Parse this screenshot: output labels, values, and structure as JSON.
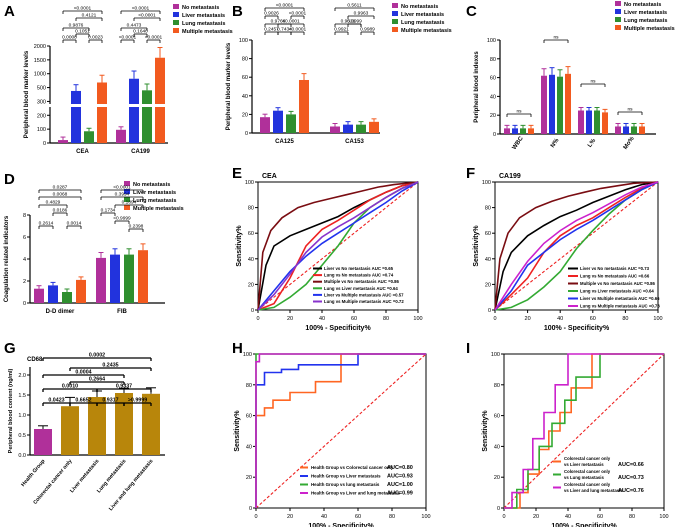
{
  "figure": {
    "panel_labels": [
      "A",
      "B",
      "C",
      "D",
      "E",
      "F",
      "G",
      "H",
      "I"
    ],
    "colors": {
      "no_met": "#b0309a",
      "liver_met": "#2233dd",
      "lung_met": "#2f8f2f",
      "multi_met": "#f25a1f",
      "gold": "#b8860b",
      "dark_red": "#7a0d12",
      "black": "#000000",
      "red": "#ee2222",
      "blue": "#2233ee",
      "green": "#33aa33",
      "purple": "#8833cc",
      "magenta": "#cc22cc",
      "orange": "#ff6622",
      "reference": "#ee2222"
    },
    "legend_4group": [
      "No metastasis",
      "Liver metastasis",
      "Lung metastasis",
      "Multiple metastasis"
    ]
  },
  "chart_data": [
    {
      "id": "A",
      "type": "bar",
      "ylabel": "Peripheral blood marker levels",
      "categories": [
        "CEA",
        "CA199"
      ],
      "series": [
        {
          "name": "No metastasis",
          "values": [
            20,
            90
          ]
        },
        {
          "name": "Liver metastasis",
          "values": [
            310,
            700
          ]
        },
        {
          "name": "Lung metastasis",
          "values": [
            80,
            330
          ]
        },
        {
          "name": "Multiple metastasis",
          "values": [
            580,
            1370
          ]
        }
      ],
      "yticks": [
        "0",
        "100",
        "200",
        "300",
        "500",
        "1000",
        "1500",
        "2000"
      ],
      "pvalues_cea": [
        "<0.0001",
        "0.4121",
        "0.9876",
        "0.1051",
        "0.0008",
        "0.0023"
      ],
      "pvalues_ca199": [
        "<0.0001",
        "<0.0001",
        "0.4473",
        "0.1640",
        "<0.0001",
        "<0.0001"
      ]
    },
    {
      "id": "B",
      "type": "bar",
      "ylabel": "Peripheral blood marker levels",
      "categories": [
        "CA125",
        "CA153"
      ],
      "series": [
        {
          "name": "No metastasis",
          "values": [
            17,
            7
          ]
        },
        {
          "name": "Liver metastasis",
          "values": [
            24,
            9
          ]
        },
        {
          "name": "Lung metastasis",
          "values": [
            20,
            9
          ]
        },
        {
          "name": "Multiple metastasis",
          "values": [
            57,
            12
          ]
        }
      ],
      "yticks": [
        "0",
        "20",
        "40",
        "60",
        "80",
        "100"
      ],
      "pvalues_ca125": [
        "<0.0001",
        "0.9026",
        "<0.0001",
        "0.9766",
        "<0.0001",
        "0.2457",
        "0.7434",
        "<0.0001"
      ],
      "pvalues_ca153": [
        "0.5611",
        "0.9963",
        "0.9521",
        "0.9999",
        "0.9921",
        "0.9989"
      ]
    },
    {
      "id": "C",
      "type": "bar",
      "ylabel": "Peripheral blood indexes",
      "categories": [
        "WBC",
        "N%",
        "L%",
        "Mo%"
      ],
      "series": [
        {
          "name": "No metastasis",
          "values": [
            6,
            62,
            25,
            8
          ]
        },
        {
          "name": "Liver metastasis",
          "values": [
            6,
            63,
            25,
            8
          ]
        },
        {
          "name": "Lung metastasis",
          "values": [
            6,
            61,
            25,
            8
          ]
        },
        {
          "name": "Multiple metastasis",
          "values": [
            6,
            64,
            23,
            8
          ]
        }
      ],
      "yticks": [
        "0",
        "20",
        "40",
        "60",
        "80",
        "100"
      ],
      "ns_label": "ns"
    },
    {
      "id": "D",
      "type": "bar",
      "ylabel": "Coagulation related indicators",
      "categories": [
        "D-D dimer",
        "FIB"
      ],
      "series": [
        {
          "name": "No metastasis",
          "values": [
            1.3,
            4.1
          ]
        },
        {
          "name": "Liver metastasis",
          "values": [
            1.6,
            4.4
          ]
        },
        {
          "name": "Lung metastasis",
          "values": [
            1.0,
            4.4
          ]
        },
        {
          "name": "Multiple metastasis",
          "values": [
            2.1,
            4.8
          ]
        }
      ],
      "yticks": [
        "0",
        "2",
        "4",
        "6",
        "8"
      ],
      "pvalues_dd": [
        "0.0287",
        "0.0068",
        "0.4829",
        "0.0186",
        "0.2614",
        "0.0014"
      ],
      "pvalues_fib": [
        "<0.0001",
        "0.3994",
        "0.1894",
        "0.1734",
        "<0.9999",
        "0.2398"
      ]
    },
    {
      "id": "E",
      "type": "line",
      "title": "CEA",
      "xlabel": "100% - Specificity%",
      "ylabel": "Sensitivity%",
      "xlim": [
        0,
        100
      ],
      "ylim": [
        0,
        100
      ],
      "ticks": [
        "0",
        "20",
        "40",
        "60",
        "80",
        "100"
      ],
      "series": [
        {
          "name": "Liver vs No metastasis  AUC =0.65",
          "color": "black",
          "x": [
            0,
            5,
            10,
            20,
            30,
            40,
            50,
            60,
            70,
            80,
            90,
            100
          ],
          "y": [
            0,
            35,
            50,
            58,
            63,
            68,
            73,
            80,
            86,
            92,
            97,
            100
          ]
        },
        {
          "name": "Lung vs No metastasis  AUC =0.74",
          "color": "red",
          "x": [
            0,
            10,
            20,
            30,
            40,
            50,
            60,
            70,
            80,
            90,
            100
          ],
          "y": [
            0,
            5,
            25,
            50,
            63,
            70,
            78,
            86,
            92,
            97,
            100
          ]
        },
        {
          "name": "Multiple  vs No metastasis  AUC =0.86",
          "color": "dark_red",
          "x": [
            0,
            3,
            8,
            15,
            25,
            35,
            45,
            55,
            65,
            75,
            85,
            100
          ],
          "y": [
            0,
            45,
            62,
            72,
            80,
            84,
            87,
            90,
            93,
            96,
            98,
            100
          ]
        },
        {
          "name": "Lung  vs Liver  metastasis  AUC =0.64",
          "color": "green",
          "x": [
            0,
            10,
            20,
            30,
            40,
            50,
            60,
            70,
            80,
            90,
            100
          ],
          "y": [
            0,
            2,
            10,
            20,
            35,
            50,
            68,
            80,
            88,
            95,
            100
          ]
        },
        {
          "name": "Liver  vs Multiple  metastasis  AUC =0.57",
          "color": "blue",
          "x": [
            0,
            10,
            20,
            30,
            40,
            50,
            60,
            70,
            80,
            90,
            100
          ],
          "y": [
            0,
            15,
            30,
            42,
            52,
            60,
            68,
            76,
            84,
            93,
            100
          ]
        },
        {
          "name": "Lung  vs Multiple metastasis  AUC =0.72",
          "color": "purple",
          "x": [
            0,
            10,
            20,
            30,
            40,
            50,
            60,
            70,
            80,
            90,
            100
          ],
          "y": [
            0,
            12,
            28,
            45,
            57,
            65,
            72,
            80,
            88,
            95,
            100
          ]
        }
      ]
    },
    {
      "id": "F",
      "type": "line",
      "title": "CA199",
      "xlabel": "100% - Specificity%",
      "ylabel": "Sensitivity%",
      "xlim": [
        0,
        100
      ],
      "ylim": [
        0,
        100
      ],
      "ticks": [
        "0",
        "20",
        "40",
        "60",
        "80",
        "100"
      ],
      "series": [
        {
          "name": "Liver vs No metastasis  AUC =0.73",
          "color": "black",
          "x": [
            0,
            5,
            10,
            20,
            30,
            40,
            50,
            60,
            70,
            80,
            90,
            100
          ],
          "y": [
            0,
            30,
            45,
            58,
            66,
            73,
            78,
            84,
            89,
            94,
            98,
            100
          ]
        },
        {
          "name": "Lung vs No metastasis  AUC =0.66",
          "color": "red",
          "x": [
            0,
            10,
            20,
            30,
            40,
            50,
            60,
            70,
            80,
            90,
            100
          ],
          "y": [
            0,
            12,
            25,
            45,
            58,
            66,
            72,
            80,
            88,
            95,
            100
          ]
        },
        {
          "name": "Multiple  vs No metastasis  AUC =0.86",
          "color": "dark_red",
          "x": [
            0,
            3,
            8,
            15,
            25,
            35,
            45,
            55,
            65,
            75,
            85,
            100
          ],
          "y": [
            0,
            40,
            60,
            72,
            80,
            85,
            89,
            92,
            95,
            97,
            99,
            100
          ]
        },
        {
          "name": "Lung  vs Liver  metastasis  AUC =0.64",
          "color": "green",
          "x": [
            0,
            10,
            20,
            30,
            40,
            50,
            60,
            70,
            80,
            90,
            100
          ],
          "y": [
            0,
            2,
            8,
            18,
            30,
            48,
            62,
            75,
            86,
            94,
            100
          ]
        },
        {
          "name": "Liver  vs Multiple  metastasis  AUC =0.66",
          "color": "blue",
          "x": [
            0,
            10,
            20,
            30,
            40,
            50,
            60,
            70,
            80,
            90,
            100
          ],
          "y": [
            0,
            15,
            35,
            45,
            55,
            63,
            70,
            78,
            86,
            94,
            100
          ]
        },
        {
          "name": "Lung  vs Multiple metastasis  AUC =0.73",
          "color": "magenta",
          "x": [
            0,
            10,
            20,
            30,
            40,
            50,
            60,
            70,
            80,
            90,
            100
          ],
          "y": [
            0,
            20,
            38,
            52,
            62,
            70,
            76,
            83,
            90,
            96,
            100
          ]
        }
      ]
    },
    {
      "id": "G",
      "type": "bar",
      "title": "CD68",
      "ylabel": "Peripheral blood content (ng/ml)",
      "categories": [
        "Health Group",
        "Colorectal cancer only",
        "Liver metastasis",
        "Lung metastasis",
        "Liver and lung metastasis"
      ],
      "values": [
        0.65,
        1.22,
        1.45,
        1.55,
        1.53
      ],
      "errors": [
        0.08,
        0.22,
        0.15,
        0.12,
        0.15
      ],
      "ylim": [
        0,
        2.2
      ],
      "yticks": [
        "0.0",
        "0.5",
        "1.0",
        "1.5",
        "2.0"
      ],
      "pvalues": [
        "0.0002",
        "0.2435",
        "0.0004",
        "0.2664",
        "0.0010",
        "0.9337",
        "0.0423",
        "0.6652",
        "0.9317",
        ">0.9999"
      ]
    },
    {
      "id": "H",
      "type": "line",
      "xlabel": "100% - Specificity%",
      "ylabel": "Sensitivity%",
      "xlim": [
        0,
        100
      ],
      "ylim": [
        0,
        100
      ],
      "ticks": [
        "0",
        "20",
        "40",
        "60",
        "80",
        "100"
      ],
      "series": [
        {
          "name": "Health Group vs Colorectal cancer only",
          "auc": "AUC=0.80",
          "color": "orange",
          "x": [
            0,
            0,
            5,
            5,
            10,
            10,
            20,
            20,
            35,
            35,
            50,
            50,
            100
          ],
          "y": [
            0,
            60,
            60,
            65,
            65,
            70,
            70,
            75,
            75,
            82,
            82,
            100,
            100
          ]
        },
        {
          "name": "Health Group vs Liver  metastasis",
          "auc": "AUC=0.93",
          "color": "blue",
          "x": [
            0,
            0,
            5,
            5,
            15,
            15,
            25,
            25,
            60,
            60,
            100
          ],
          "y": [
            0,
            80,
            80,
            88,
            88,
            90,
            90,
            93,
            93,
            100,
            100
          ]
        },
        {
          "name": "Health Group vs  lung metastasis",
          "auc": "AUC=1.00",
          "color": "green",
          "x": [
            0,
            0,
            100
          ],
          "y": [
            0,
            100,
            100
          ]
        },
        {
          "name": "Health Group vs Liver and lung metastasis",
          "auc": "AUC=0.99",
          "color": "magenta",
          "x": [
            0,
            0,
            2,
            2,
            100
          ],
          "y": [
            0,
            95,
            95,
            100,
            100
          ]
        }
      ]
    },
    {
      "id": "I",
      "type": "line",
      "xlabel": "100% - Specificity%",
      "ylabel": "Sensitivity%",
      "xlim": [
        0,
        100
      ],
      "ylim": [
        0,
        100
      ],
      "ticks": [
        "0",
        "20",
        "40",
        "60",
        "80",
        "100"
      ],
      "series": [
        {
          "name": "Colorectal cancer only vs Liver metastasis",
          "auc": "AUC=0.66",
          "color": "orange",
          "x": [
            0,
            10,
            10,
            15,
            15,
            22,
            22,
            28,
            28,
            35,
            35,
            42,
            42,
            55,
            55,
            100
          ],
          "y": [
            0,
            0,
            10,
            10,
            22,
            22,
            38,
            38,
            50,
            50,
            62,
            62,
            78,
            78,
            100,
            100
          ]
        },
        {
          "name": "Colorectal cancer only vs Lung metastasis",
          "auc": "AUC=0.73",
          "color": "green",
          "x": [
            0,
            8,
            8,
            15,
            15,
            22,
            22,
            30,
            30,
            38,
            38,
            45,
            45,
            60,
            60,
            100
          ],
          "y": [
            0,
            0,
            12,
            12,
            25,
            25,
            40,
            40,
            55,
            55,
            70,
            70,
            85,
            85,
            100,
            100
          ]
        },
        {
          "name": "Colorectal cancer only vs Liver and lung metastasis",
          "auc": "AUC=0.76",
          "color": "magenta",
          "x": [
            0,
            5,
            5,
            12,
            12,
            18,
            18,
            25,
            25,
            32,
            32,
            40,
            40,
            100
          ],
          "y": [
            0,
            0,
            10,
            10,
            25,
            25,
            45,
            45,
            62,
            62,
            80,
            80,
            100,
            100
          ]
        }
      ]
    }
  ]
}
